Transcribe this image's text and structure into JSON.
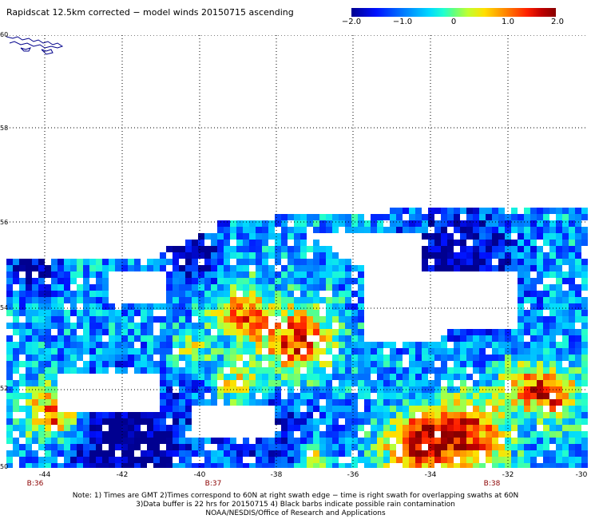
{
  "title": "Rapidscat 12.5km corrected − model winds 20150715 ascending",
  "colorbar": {
    "ticks": [
      "−2.0",
      "−1.0",
      "0",
      "1.0",
      "2.0"
    ],
    "min": -2.0,
    "max": 2.0
  },
  "map": {
    "lon_ticks": [
      "-44",
      "-42",
      "-40",
      "-38",
      "-36",
      "-34",
      "-32",
      "-30"
    ],
    "lat_ticks": [
      "60",
      "58",
      "56",
      "54",
      "52",
      "50"
    ],
    "lon_range": [
      -44.5,
      -30
    ],
    "lat_range": [
      50,
      60
    ],
    "grid": "dotted",
    "rev_labels": [
      {
        "label": "B:36",
        "lon": -44.4
      },
      {
        "label": "B:37",
        "lon": -40.3
      },
      {
        "label": "B:38",
        "lon": -32.6
      }
    ]
  },
  "notes": [
    "Note: 1) Times are GMT 2)Times correspond to 60N at right swath edge − time is right swath for overlapping swaths at 60N",
    "3)Data buffer is 22 hrs for 20150715 4) Black barbs indicate possible rain contamination",
    "NOAA/NESDIS/Office of Research and Applications"
  ],
  "colors": {
    "grid": "#000000",
    "rev_label": "#8b0000",
    "coastline": "#00008b"
  }
}
